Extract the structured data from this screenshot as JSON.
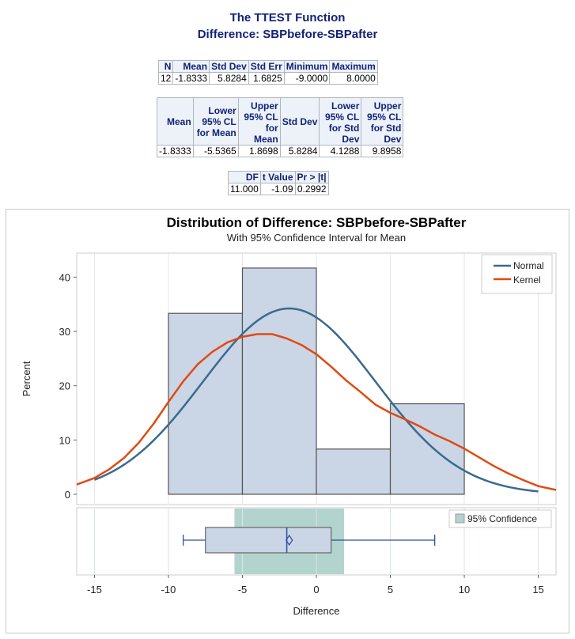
{
  "header": {
    "title": "The TTEST Function",
    "subtitle": "Difference: SBPbefore-SBPafter"
  },
  "table1": {
    "headers": [
      "N",
      "Mean",
      "Std Dev",
      "Std Err",
      "Minimum",
      "Maximum"
    ],
    "row": [
      "12",
      "-1.8333",
      "5.8284",
      "1.6825",
      "-9.0000",
      "8.0000"
    ]
  },
  "table2": {
    "headers": [
      "Mean",
      "Lower 95% CL for Mean",
      "Upper 95% CL for Mean",
      "Std Dev",
      "Lower 95% CL for Std Dev",
      "Upper 95% CL for Std Dev"
    ],
    "row": [
      "-1.8333",
      "-5.5365",
      "1.8698",
      "5.8284",
      "4.1288",
      "9.8958"
    ]
  },
  "table3": {
    "headers": [
      "DF",
      "t Value",
      "Pr > |t|"
    ],
    "row": [
      "11.000",
      "-1.09",
      "0.2992"
    ]
  },
  "chart_data": {
    "type": "histogram",
    "title": "Distribution of Difference: SBPbefore-SBPafter",
    "subtitle": "With 95% Confidence Interval for Mean",
    "xlabel": "Difference",
    "ylabel": "Percent",
    "xlim": [
      -16.2,
      16.2
    ],
    "ylim": [
      0,
      44.4
    ],
    "xticks": [
      -15,
      -10,
      -5,
      0,
      5,
      10,
      15
    ],
    "yticks": [
      0,
      10,
      20,
      30,
      40
    ],
    "bins": [
      {
        "from": -10,
        "to": -5,
        "percent": 33.33
      },
      {
        "from": -5,
        "to": 0,
        "percent": 41.67
      },
      {
        "from": 0,
        "to": 5,
        "percent": 8.33
      },
      {
        "from": 5,
        "to": 10,
        "percent": 16.67
      }
    ],
    "normal": {
      "name": "Normal",
      "mean": -1.8333,
      "sd": 5.8284,
      "color": "#3a6a8f",
      "range": [
        -15,
        15
      ]
    },
    "kernel": {
      "name": "Kernel",
      "color": "#e04a12",
      "points": [
        [
          -16.2,
          1.8
        ],
        [
          -15,
          3
        ],
        [
          -14,
          4.6
        ],
        [
          -13,
          6.7
        ],
        [
          -12,
          9.5
        ],
        [
          -11,
          13
        ],
        [
          -10,
          17
        ],
        [
          -9,
          20.8
        ],
        [
          -8,
          24
        ],
        [
          -7,
          26.3
        ],
        [
          -6,
          28
        ],
        [
          -5,
          29
        ],
        [
          -4,
          29.5
        ],
        [
          -3,
          29.5
        ],
        [
          -2,
          28.7
        ],
        [
          -1,
          27.5
        ],
        [
          0,
          25.8
        ],
        [
          1,
          23.5
        ],
        [
          2,
          21
        ],
        [
          3,
          18.8
        ],
        [
          4,
          16.5
        ],
        [
          5,
          15
        ],
        [
          6,
          13.8
        ],
        [
          7,
          12.5
        ],
        [
          8,
          11
        ],
        [
          9,
          9.8
        ],
        [
          10,
          8.4
        ],
        [
          11,
          6.8
        ],
        [
          12,
          5.2
        ],
        [
          13,
          3.8
        ],
        [
          14,
          2.6
        ],
        [
          15,
          1.5
        ],
        [
          16.2,
          0.8
        ]
      ]
    },
    "boxplot": {
      "min": -9,
      "q1": -7.5,
      "median": -2,
      "mean": -1.8333,
      "q3": 1,
      "max": 8
    },
    "confidence": {
      "name": "95% Confidence",
      "lower": -5.5365,
      "upper": 1.8698,
      "color": "#b3d3cf"
    },
    "colors": {
      "bar_fill": "#cad5e5",
      "bar_stroke": "#555",
      "box_line": "#2d4fa0"
    }
  }
}
